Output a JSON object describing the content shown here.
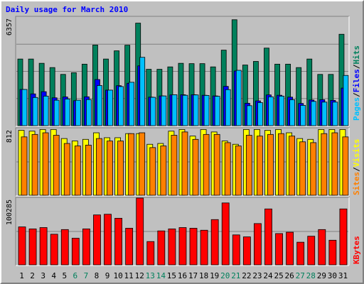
{
  "chart_data": {
    "type": "bar",
    "title": "Daily usage for March 2010",
    "categories": [
      "1",
      "2",
      "3",
      "4",
      "5",
      "6",
      "7",
      "8",
      "9",
      "10",
      "11",
      "12",
      "13",
      "14",
      "15",
      "16",
      "17",
      "18",
      "19",
      "20",
      "21",
      "22",
      "23",
      "24",
      "25",
      "26",
      "27",
      "28",
      "29",
      "30",
      "31"
    ],
    "weekend_days": [
      "6",
      "7",
      "13",
      "14",
      "20",
      "21",
      "27",
      "28"
    ],
    "grid": true,
    "panels": [
      {
        "name": "hits_panel",
        "ymax_label": "6357",
        "ymax": 6357,
        "series": [
          {
            "name": "Hits",
            "color": "#00805c",
            "values": [
              3900,
              3900,
              3650,
              3400,
              3000,
              3100,
              3600,
              4720,
              3900,
              4380,
              4710,
              6000,
              3300,
              3300,
              3440,
              3650,
              3630,
              3630,
              3440,
              4420,
              6200,
              3550,
              3760,
              4540,
              3600,
              3600,
              3400,
              3900,
              3000,
              3000,
              5350
            ]
          },
          {
            "name": "Files",
            "color": "#0000ff",
            "values": [
              2120,
              1860,
              1990,
              1630,
              1680,
              1460,
              1690,
              2700,
              2080,
              2340,
              2480,
              3500,
              1670,
              1740,
              1800,
              1810,
              1810,
              1780,
              1740,
              2300,
              3200,
              1310,
              1450,
              1800,
              1780,
              1670,
              1300,
              1500,
              1520,
              1480,
              2200
            ]
          },
          {
            "name": "Pages",
            "color": "#00c0ff",
            "values": [
              2120,
              1650,
              1730,
              1490,
              1560,
              1490,
              1530,
              2350,
              2080,
              2290,
              2540,
              4000,
              1660,
              1740,
              1810,
              1780,
              1800,
              1770,
              1720,
              2110,
              3240,
              1170,
              1350,
              1690,
              1730,
              1520,
              1190,
              1420,
              1380,
              1380,
              2940
            ]
          }
        ]
      },
      {
        "name": "visits_panel",
        "ymax_label": "812",
        "ymax": 812,
        "series": [
          {
            "name": "Visits",
            "color": "#ffff00",
            "values": [
              790,
              780,
              800,
              800,
              690,
              660,
              680,
              760,
              700,
              700,
              750,
              750,
              620,
              630,
              780,
              800,
              720,
              800,
              770,
              660,
              620,
              800,
              800,
              790,
              800,
              760,
              690,
              680,
              800,
              800,
              800
            ]
          },
          {
            "name": "Sites",
            "color": "#ff8000",
            "values": [
              710,
              740,
              760,
              730,
              630,
              600,
              610,
              690,
              660,
              660,
              750,
              760,
              580,
              600,
              730,
              770,
              680,
              740,
              740,
              640,
              600,
              730,
              720,
              740,
              750,
              720,
              650,
              640,
              750,
              760,
              710
            ]
          }
        ]
      },
      {
        "name": "kbytes_panel",
        "ymax_label": "100285",
        "ymax": 100285,
        "series": [
          {
            "name": "KBytes",
            "color": "#ff0000",
            "values": [
              57000,
              54000,
              56000,
              46000,
              53000,
              40000,
              54000,
              75000,
              76000,
              70000,
              55000,
              100285,
              35000,
              51000,
              54000,
              56000,
              55000,
              52000,
              68000,
              93000,
              45000,
              42000,
              62000,
              84000,
              47000,
              49000,
              34000,
              43000,
              53000,
              37000,
              84000
            ]
          }
        ]
      }
    ],
    "legend_labels": {
      "pages": "Pages",
      "files": "Files",
      "hits": "Hits",
      "sites": "Sites",
      "visits": "Visits",
      "kbytes": "KBytes",
      "separator": "/"
    },
    "colors": {
      "background": "#c0c0c0",
      "plot_background": "#c0c0c0",
      "grid": "#808080",
      "title": "#0000ff",
      "weekday_tick": "#000000",
      "weekend_tick": "#00805c"
    }
  }
}
